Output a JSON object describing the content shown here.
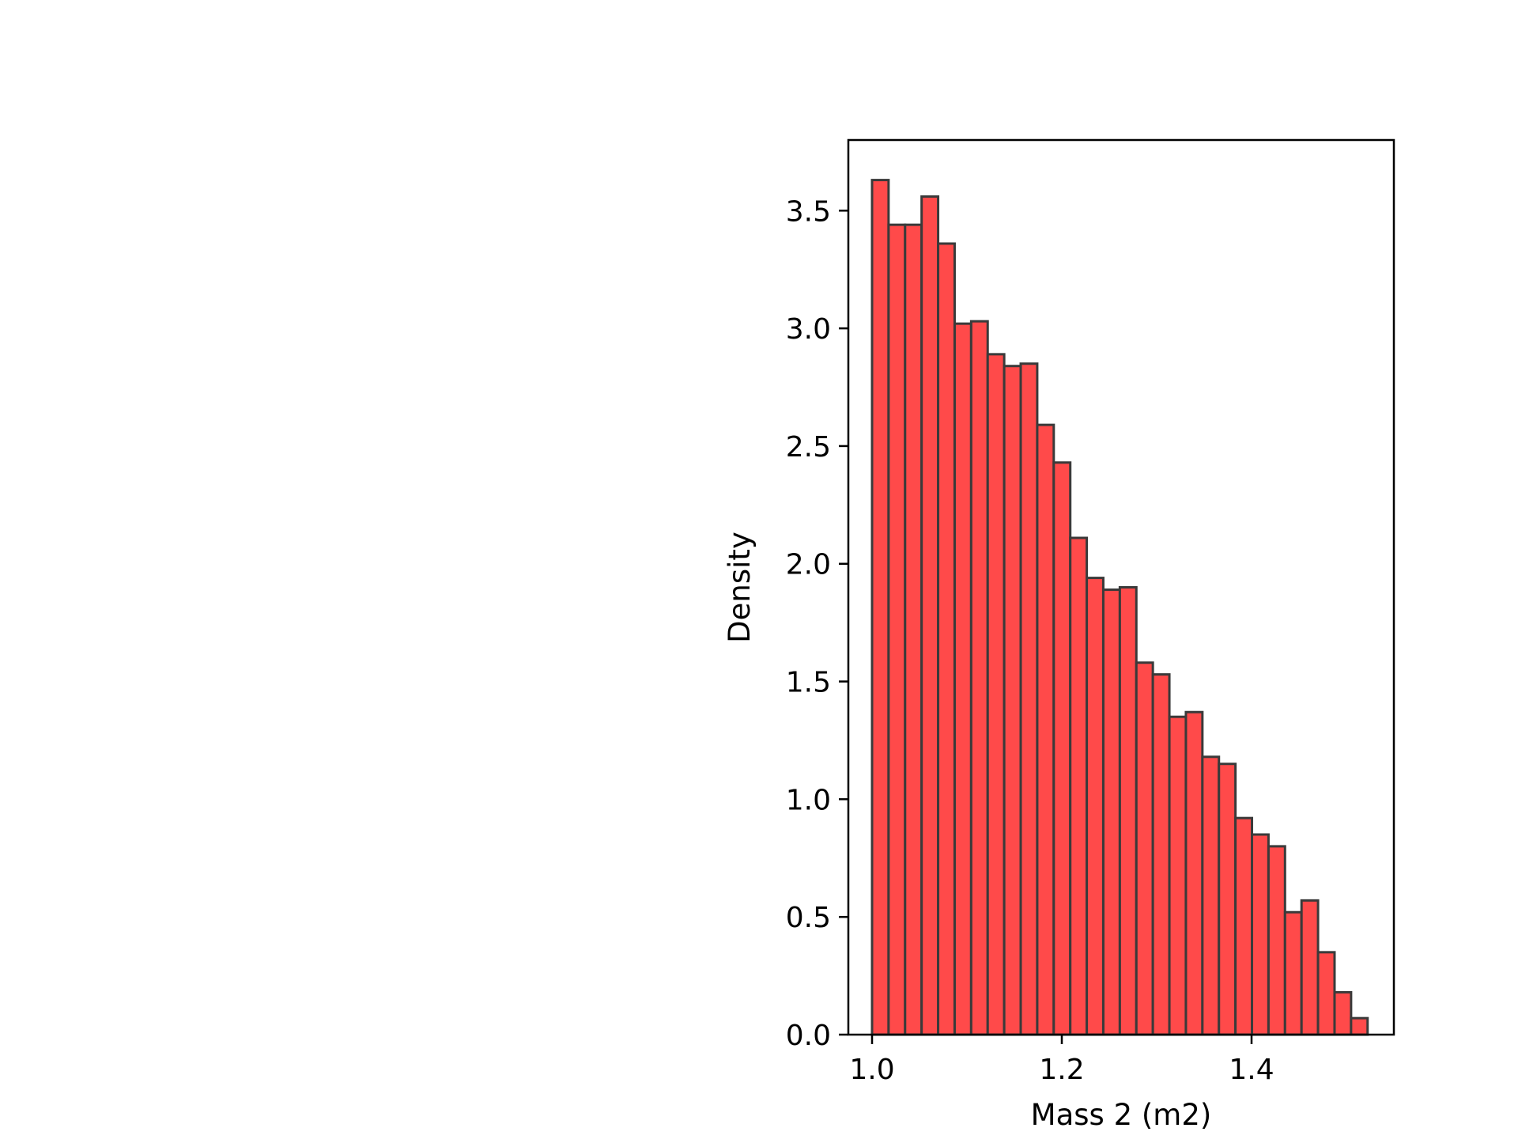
{
  "chart_data": {
    "type": "bar",
    "variant": "histogram",
    "xlabel": "Mass 2 (m2)",
    "ylabel": "Density",
    "xlim": [
      0.975,
      1.55
    ],
    "ylim": [
      0,
      3.8
    ],
    "xticks": [
      1.0,
      1.2,
      1.4
    ],
    "xtick_labels": [
      "1.0",
      "1.2",
      "1.4"
    ],
    "yticks": [
      0.0,
      0.5,
      1.0,
      1.5,
      2.0,
      2.5,
      3.0,
      3.5
    ],
    "ytick_labels": [
      "0.0",
      "0.5",
      "1.0",
      "1.5",
      "2.0",
      "2.5",
      "3.0",
      "3.5"
    ],
    "grid": false,
    "legend": "none",
    "bin_start": 1.0,
    "bin_width": 0.01741,
    "values": [
      3.63,
      3.44,
      3.44,
      3.56,
      3.36,
      3.02,
      3.03,
      2.89,
      2.84,
      2.85,
      2.59,
      2.43,
      2.11,
      1.94,
      1.89,
      1.9,
      1.58,
      1.53,
      1.35,
      1.37,
      1.18,
      1.15,
      0.92,
      0.85,
      0.8,
      0.52,
      0.57,
      0.35,
      0.18,
      0.07
    ],
    "colors": {
      "bar_fill": "#ff4a4a",
      "bar_edge": "#3a3a3a",
      "axes": "#000000"
    }
  }
}
